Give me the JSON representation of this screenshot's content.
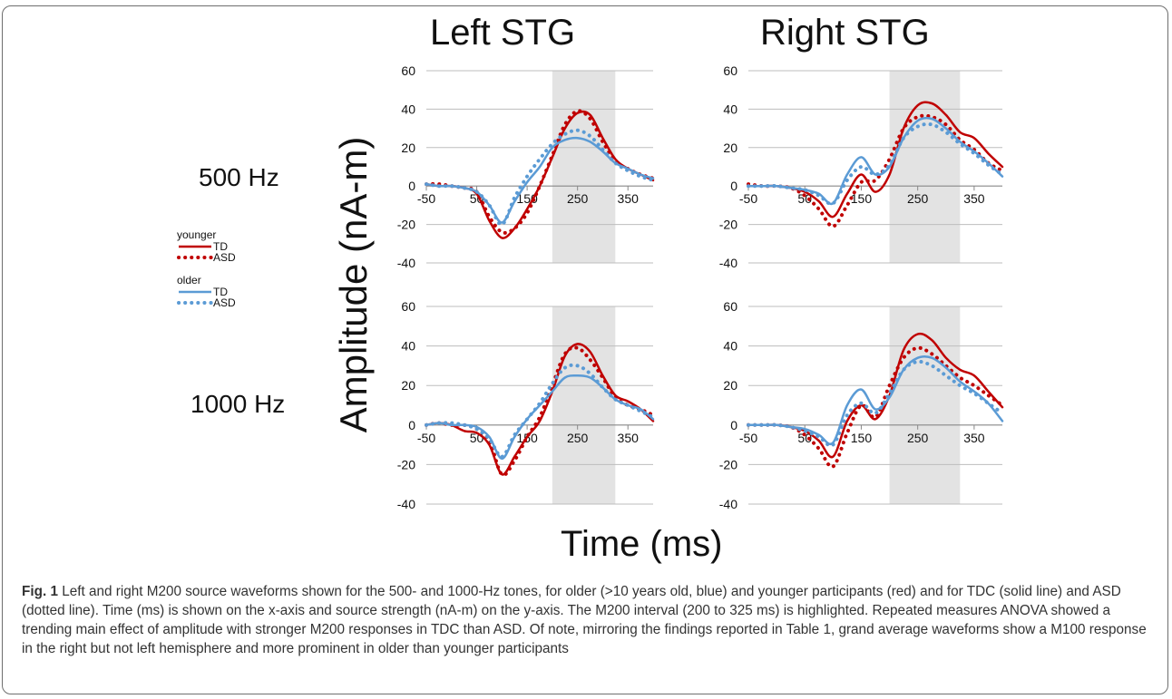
{
  "columns": [
    "Left STG",
    "Right STG"
  ],
  "rows": [
    "500 Hz",
    "1000 Hz"
  ],
  "ylabel": "Amplitude (nA-m)",
  "xlabel": "Time (ms)",
  "legend": {
    "groups": [
      {
        "title": "younger",
        "color": "#c00000",
        "entries": [
          {
            "label": "TD",
            "style": "solid"
          },
          {
            "label": "ASD",
            "style": "dotted"
          }
        ]
      },
      {
        "title": "older",
        "color": "#5b9bd5",
        "entries": [
          {
            "label": "TD",
            "style": "solid"
          },
          {
            "label": "ASD",
            "style": "dotted"
          }
        ]
      }
    ]
  },
  "caption": {
    "label": "Fig. 1",
    "text": " Left and right M200 source waveforms shown for the 500- and 1000-Hz tones, for older (>10 years old, blue) and younger participants (red) and for TDC (solid line) and ASD (dotted line). Time (ms) is shown on the x-axis and source strength (nA-m) on the y-axis. The M200 interval (200 to 325 ms) is highlighted. Repeated measures ANOVA showed a trending main effect of amplitude with stronger M200 responses in TDC than ASD. Of note, mirroring the findings reported in Table 1, grand average waveforms show a M100 response in the right but not left hemisphere and more prominent in older than younger participants"
  },
  "chart_data": [
    {
      "type": "line",
      "panel": "Left STG / 500 Hz",
      "xlim": [
        -50,
        400
      ],
      "ylim": [
        -40,
        60
      ],
      "xticks": [
        -50,
        50,
        150,
        250,
        350
      ],
      "yticks": [
        -40,
        -20,
        0,
        20,
        40,
        60
      ],
      "highlight": [
        200,
        325
      ],
      "grid": "horizontal",
      "x": [
        -50,
        -25,
        0,
        25,
        50,
        75,
        100,
        125,
        150,
        175,
        200,
        225,
        250,
        275,
        300,
        325,
        350,
        375,
        400
      ],
      "series": [
        {
          "name": "younger TD",
          "color": "#c00000",
          "style": "solid",
          "values": [
            1,
            0,
            0,
            -1,
            -4,
            -18,
            -27,
            -22,
            -12,
            0,
            15,
            30,
            38,
            37,
            25,
            14,
            9,
            6,
            3
          ]
        },
        {
          "name": "younger ASD",
          "color": "#c00000",
          "style": "dotted",
          "values": [
            1,
            1,
            0,
            -1,
            -3,
            -16,
            -24,
            -22,
            -14,
            0,
            16,
            32,
            39,
            35,
            23,
            13,
            9,
            6,
            4
          ]
        },
        {
          "name": "older TD",
          "color": "#5b9bd5",
          "style": "solid",
          "values": [
            1,
            0,
            0,
            -1,
            -3,
            -10,
            -19,
            -8,
            2,
            10,
            20,
            24,
            25,
            23,
            18,
            12,
            9,
            6,
            4
          ]
        },
        {
          "name": "older ASD",
          "color": "#5b9bd5",
          "style": "dotted",
          "values": [
            1,
            0,
            0,
            -1,
            -3,
            -10,
            -20,
            -6,
            5,
            14,
            22,
            27,
            29,
            26,
            19,
            12,
            8,
            5,
            3
          ]
        }
      ]
    },
    {
      "type": "line",
      "panel": "Right STG / 500 Hz",
      "xlim": [
        -50,
        400
      ],
      "ylim": [
        -40,
        60
      ],
      "xticks": [
        -50,
        50,
        150,
        250,
        350
      ],
      "yticks": [
        -40,
        -20,
        0,
        20,
        40,
        60
      ],
      "highlight": [
        200,
        325
      ],
      "grid": "horizontal",
      "x": [
        -50,
        -25,
        0,
        25,
        50,
        75,
        100,
        125,
        150,
        175,
        200,
        225,
        250,
        275,
        300,
        325,
        350,
        375,
        400
      ],
      "series": [
        {
          "name": "younger TD",
          "color": "#c00000",
          "style": "solid",
          "values": [
            0,
            0,
            0,
            -1,
            -3,
            -8,
            -16,
            -4,
            6,
            -3,
            6,
            30,
            42,
            43,
            37,
            28,
            25,
            17,
            10
          ]
        },
        {
          "name": "younger ASD",
          "color": "#c00000",
          "style": "dotted",
          "values": [
            1,
            0,
            0,
            -1,
            -5,
            -12,
            -21,
            -10,
            2,
            3,
            14,
            30,
            36,
            36,
            32,
            24,
            19,
            12,
            8
          ]
        },
        {
          "name": "older TD",
          "color": "#5b9bd5",
          "style": "solid",
          "values": [
            0,
            0,
            0,
            -1,
            -2,
            -4,
            -9,
            6,
            15,
            6,
            10,
            25,
            34,
            35,
            30,
            23,
            18,
            12,
            5
          ]
        },
        {
          "name": "older ASD",
          "color": "#5b9bd5",
          "style": "dotted",
          "values": [
            0,
            0,
            0,
            -1,
            -2,
            -5,
            -9,
            3,
            10,
            6,
            11,
            25,
            31,
            32,
            28,
            22,
            17,
            11,
            6
          ]
        }
      ]
    },
    {
      "type": "line",
      "panel": "Left STG / 1000 Hz",
      "xlim": [
        -50,
        400
      ],
      "ylim": [
        -40,
        60
      ],
      "xticks": [
        -50,
        50,
        150,
        250,
        350
      ],
      "yticks": [
        -40,
        -20,
        0,
        20,
        40,
        60
      ],
      "highlight": [
        200,
        325
      ],
      "grid": "horizontal",
      "x": [
        -50,
        -25,
        0,
        25,
        50,
        75,
        100,
        125,
        150,
        175,
        200,
        225,
        250,
        275,
        300,
        325,
        350,
        375,
        400
      ],
      "series": [
        {
          "name": "younger TD",
          "color": "#c00000",
          "style": "solid",
          "values": [
            0,
            1,
            0,
            -3,
            -4,
            -10,
            -25,
            -16,
            -6,
            2,
            17,
            35,
            41,
            37,
            25,
            15,
            12,
            8,
            2
          ]
        },
        {
          "name": "younger ASD",
          "color": "#c00000",
          "style": "dotted",
          "values": [
            0,
            1,
            0,
            0,
            -2,
            -8,
            -25,
            -18,
            -6,
            4,
            20,
            36,
            39,
            33,
            24,
            14,
            10,
            8,
            5
          ]
        },
        {
          "name": "older TD",
          "color": "#5b9bd5",
          "style": "solid",
          "values": [
            0,
            1,
            0,
            0,
            -1,
            -6,
            -17,
            -6,
            3,
            10,
            17,
            24,
            25,
            24,
            19,
            13,
            10,
            8,
            3
          ]
        },
        {
          "name": "older ASD",
          "color": "#5b9bd5",
          "style": "dotted",
          "values": [
            0,
            1,
            1,
            0,
            -2,
            -7,
            -16,
            -5,
            3,
            11,
            21,
            29,
            30,
            26,
            19,
            13,
            10,
            7,
            4
          ]
        }
      ]
    },
    {
      "type": "line",
      "panel": "Right STG / 1000 Hz",
      "xlim": [
        -50,
        400
      ],
      "ylim": [
        -40,
        60
      ],
      "xticks": [
        -50,
        50,
        150,
        250,
        350
      ],
      "yticks": [
        -40,
        -20,
        0,
        20,
        40,
        60
      ],
      "highlight": [
        200,
        325
      ],
      "grid": "horizontal",
      "x": [
        -50,
        -25,
        0,
        25,
        50,
        75,
        100,
        125,
        150,
        175,
        200,
        225,
        250,
        275,
        300,
        325,
        350,
        375,
        400
      ],
      "series": [
        {
          "name": "younger TD",
          "color": "#c00000",
          "style": "solid",
          "values": [
            0,
            0,
            0,
            -1,
            -3,
            -8,
            -16,
            2,
            10,
            3,
            15,
            38,
            46,
            43,
            34,
            28,
            25,
            17,
            9
          ]
        },
        {
          "name": "younger ASD",
          "color": "#c00000",
          "style": "dotted",
          "values": [
            0,
            0,
            0,
            -1,
            -5,
            -12,
            -21,
            -4,
            10,
            4,
            20,
            34,
            39,
            36,
            30,
            24,
            20,
            15,
            10
          ]
        },
        {
          "name": "older TD",
          "color": "#5b9bd5",
          "style": "solid",
          "values": [
            0,
            0,
            0,
            -1,
            -2,
            -5,
            -9,
            10,
            18,
            8,
            14,
            28,
            34,
            34,
            29,
            22,
            17,
            11,
            2
          ]
        },
        {
          "name": "older ASD",
          "color": "#5b9bd5",
          "style": "dotted",
          "values": [
            0,
            0,
            0,
            -1,
            -3,
            -6,
            -10,
            5,
            11,
            6,
            16,
            28,
            32,
            30,
            25,
            20,
            16,
            11,
            6
          ]
        }
      ]
    }
  ]
}
